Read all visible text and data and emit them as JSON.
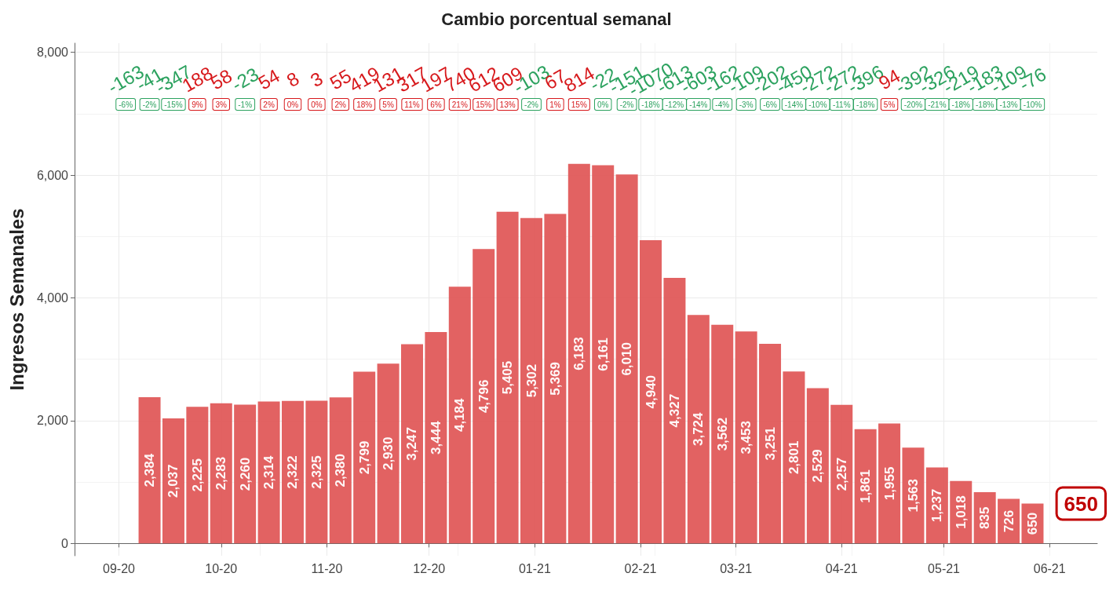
{
  "chart_data": {
    "type": "bar",
    "title": "Cambio porcentual semanal",
    "ylabel": "Ingresos Semanales",
    "x": [
      "2020-09-10",
      "2020-09-17",
      "2020-09-24",
      "2020-10-01",
      "2020-10-08",
      "2020-10-15",
      "2020-10-22",
      "2020-10-29",
      "2020-11-05",
      "2020-11-12",
      "2020-11-19",
      "2020-11-26",
      "2020-12-03",
      "2020-12-10",
      "2020-12-17",
      "2020-12-24",
      "2020-12-31",
      "2021-01-07",
      "2021-01-14",
      "2021-01-21",
      "2021-01-28",
      "2021-02-04",
      "2021-02-11",
      "2021-02-18",
      "2021-02-25",
      "2021-03-04",
      "2021-03-11",
      "2021-03-18",
      "2021-03-25",
      "2021-04-01",
      "2021-04-08",
      "2021-04-15",
      "2021-04-22",
      "2021-04-29",
      "2021-05-06",
      "2021-05-13",
      "2021-05-20",
      "2021-05-27"
    ],
    "values": [
      2384,
      2037,
      2225,
      2283,
      2260,
      2314,
      2322,
      2325,
      2380,
      2799,
      2930,
      3247,
      3444,
      4184,
      4796,
      5405,
      5302,
      5369,
      6183,
      6161,
      6010,
      4940,
      4327,
      3724,
      3562,
      3453,
      3251,
      2801,
      2529,
      2257,
      1861,
      1955,
      1563,
      1237,
      1018,
      835,
      726,
      650
    ],
    "value_labels": [
      "2,384",
      "2,037",
      "2,225",
      "2,283",
      "2,260",
      "2,314",
      "2,322",
      "2,325",
      "2,380",
      "2,799",
      "2,930",
      "3,247",
      "3,444",
      "4,184",
      "4,796",
      "5,405",
      "5,302",
      "5,369",
      "6,183",
      "6,161",
      "6,010",
      "4,940",
      "4,327",
      "3,724",
      "3,562",
      "3,453",
      "3,251",
      "2,801",
      "2,529",
      "2,257",
      "1,861",
      "1,955",
      "1,563",
      "1,237",
      "1,018",
      "835",
      "726",
      "650"
    ],
    "color": "#e05a5a",
    "xlim": [
      "2020-08-19",
      "2021-06-15"
    ],
    "xticks": [
      {
        "value": "2020-09-01",
        "label": "09-20"
      },
      {
        "value": "2020-10-01",
        "label": "10-20"
      },
      {
        "value": "2020-11-01",
        "label": "11-20"
      },
      {
        "value": "2020-12-01",
        "label": "12-20"
      },
      {
        "value": "2021-01-01",
        "label": "01-21"
      },
      {
        "value": "2021-02-01",
        "label": "02-21"
      },
      {
        "value": "2021-03-01",
        "label": "03-21"
      },
      {
        "value": "2021-04-01",
        "label": "04-21"
      },
      {
        "value": "2021-05-01",
        "label": "05-21"
      },
      {
        "value": "2021-06-01",
        "label": "06-21"
      }
    ],
    "ylim": [
      -200,
      8150
    ],
    "yticks": [
      0,
      {
        "value": 2000,
        "label": "2,000"
      },
      {
        "value": 4000,
        "label": "4,000"
      },
      {
        "value": 6000,
        "label": "6,000"
      },
      {
        "value": 8000,
        "label": "8,000"
      }
    ],
    "grid": true,
    "annotations": [
      "-163",
      "-6%",
      "-41",
      "-2%",
      "-347",
      "-15%",
      "188",
      "9%",
      "58",
      "3%",
      "-23",
      "-1%",
      "54",
      "2%",
      "8",
      "0%",
      "3",
      "0%",
      "55",
      "2%",
      "419",
      "18%",
      "131",
      "5%",
      "317",
      "11%",
      "197",
      "6%",
      "740",
      "21%",
      "612",
      "15%",
      "609",
      "13%",
      "-103",
      "-2%",
      "67",
      "1%",
      "814",
      "15%",
      "-22",
      "0%",
      "-151",
      "-2%",
      "-1070",
      "-18%",
      "-613",
      "-12%",
      "-603",
      "-14%",
      "-162",
      "-4%",
      "-109",
      "-3%",
      "-202",
      "-6%",
      "-450",
      "-14%",
      "-272",
      "-10%",
      "-272",
      "-11%",
      "-396",
      "-18%",
      "94",
      "5%",
      "-392",
      "-20%",
      "-326",
      "-21%",
      "-219",
      "-18%",
      "-183",
      "-18%",
      "-109",
      "-13%",
      "-76",
      "-10%",
      {
        "text": "650",
        "x": "2021-05-27",
        "y": 650
      }
    ]
  }
}
